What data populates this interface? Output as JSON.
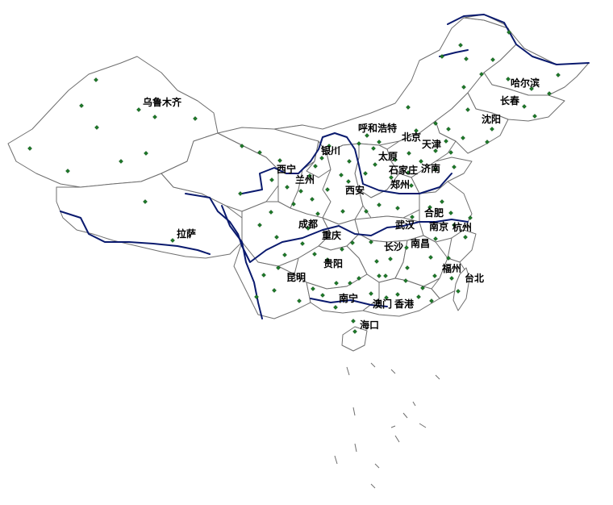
{
  "colors": {
    "border": "#6e6e6e",
    "river": "#0a1a6e",
    "station": "#1f7a2a",
    "label": "#000000"
  },
  "cities": [
    {
      "name": "乌鲁木齐"
    },
    {
      "name": "哈尔滨"
    },
    {
      "name": "长春"
    },
    {
      "name": "沈阳"
    },
    {
      "name": "呼和浩特"
    },
    {
      "name": "北京"
    },
    {
      "name": "天津"
    },
    {
      "name": "银川"
    },
    {
      "name": "太原"
    },
    {
      "name": "石家庄"
    },
    {
      "name": "济南"
    },
    {
      "name": "西宁"
    },
    {
      "name": "兰州"
    },
    {
      "name": "西安"
    },
    {
      "name": "郑州"
    },
    {
      "name": "拉萨"
    },
    {
      "name": "成都"
    },
    {
      "name": "合肥"
    },
    {
      "name": "武汉"
    },
    {
      "name": "南京"
    },
    {
      "name": "杭州"
    },
    {
      "name": "重庆"
    },
    {
      "name": "长沙"
    },
    {
      "name": "南昌"
    },
    {
      "name": "贵阳"
    },
    {
      "name": "福州"
    },
    {
      "name": "台北"
    },
    {
      "name": "昆明"
    },
    {
      "name": "南宁"
    },
    {
      "name": "澳门"
    },
    {
      "name": "香港"
    },
    {
      "name": "海口"
    }
  ]
}
